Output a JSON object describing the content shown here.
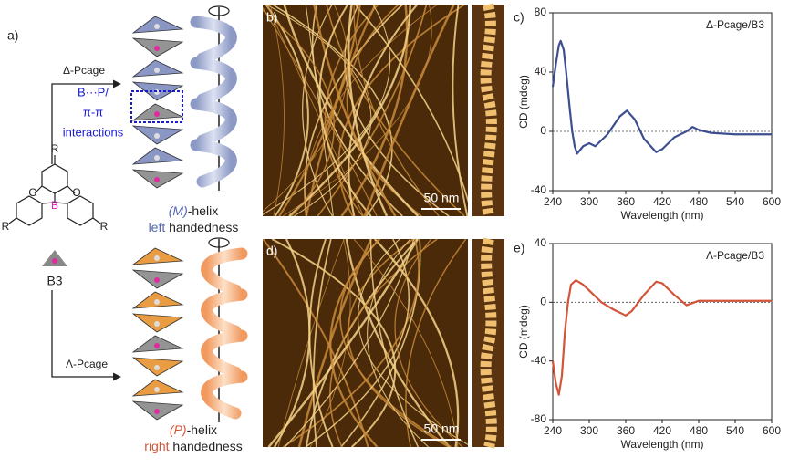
{
  "panels": {
    "a": {
      "label": "a)",
      "arrow_top": "Δ-Pcage",
      "arrow_bottom": "Λ-Pcage",
      "interaction": [
        "B···P/",
        "π-π",
        "interactions"
      ],
      "molecule_atoms": [
        "R",
        "R",
        "R",
        "O",
        "O",
        "B"
      ],
      "compound": "B3",
      "helix_m": {
        "sense": "(M)",
        "suffix": "-helix",
        "hand": "left",
        "word": " handedness"
      },
      "helix_p": {
        "sense": "(P)",
        "suffix": "-helix",
        "hand": "right",
        "word": " handedness"
      }
    },
    "b": {
      "label": "b)",
      "scale": "50 nm"
    },
    "d": {
      "label": "d)",
      "scale": "50 nm"
    }
  },
  "chart_data": [
    {
      "type": "line",
      "panel_label": "c)",
      "annotation": "Δ-Pcage/B3",
      "x_label": "Wavelength (nm)",
      "y_label": "CD (mdeg)",
      "color": "#3d4f8f",
      "x": [
        240,
        245,
        250,
        253,
        258,
        262,
        268,
        272,
        276,
        280,
        290,
        300,
        310,
        330,
        350,
        362,
        375,
        390,
        410,
        420,
        440,
        460,
        470,
        480,
        500,
        540,
        600
      ],
      "values": [
        30,
        45,
        58,
        61,
        55,
        40,
        15,
        0,
        -10,
        -15,
        -10,
        -8,
        -10,
        -2,
        10,
        14,
        8,
        -5,
        -14,
        -12,
        -4,
        0,
        3,
        1,
        -1,
        -2,
        -2
      ],
      "xlim": [
        240,
        600
      ],
      "ylim": [
        -40,
        80
      ],
      "xticks": [
        240,
        300,
        360,
        420,
        480,
        540,
        600
      ],
      "yticks": [
        -40,
        0,
        40,
        80
      ],
      "reference_line": 0
    },
    {
      "type": "line",
      "panel_label": "e)",
      "annotation": "Λ-Pcage/B3",
      "x_label": "Wavelength (nm)",
      "y_label": "CD (mdeg)",
      "color": "#d2553a",
      "x": [
        240,
        245,
        250,
        255,
        260,
        265,
        270,
        278,
        290,
        300,
        320,
        340,
        360,
        370,
        390,
        410,
        420,
        440,
        460,
        480,
        500,
        540,
        600
      ],
      "values": [
        -40,
        -55,
        -63,
        -50,
        -20,
        0,
        12,
        15,
        12,
        8,
        0,
        -5,
        -9,
        -6,
        5,
        14,
        13,
        5,
        -2,
        1,
        1,
        1,
        1
      ],
      "xlim": [
        240,
        600
      ],
      "ylim": [
        -80,
        40
      ],
      "xticks": [
        240,
        300,
        360,
        420,
        480,
        540,
        600
      ],
      "yticks": [
        -80,
        -40,
        0,
        40
      ],
      "reference_line": 0
    }
  ]
}
